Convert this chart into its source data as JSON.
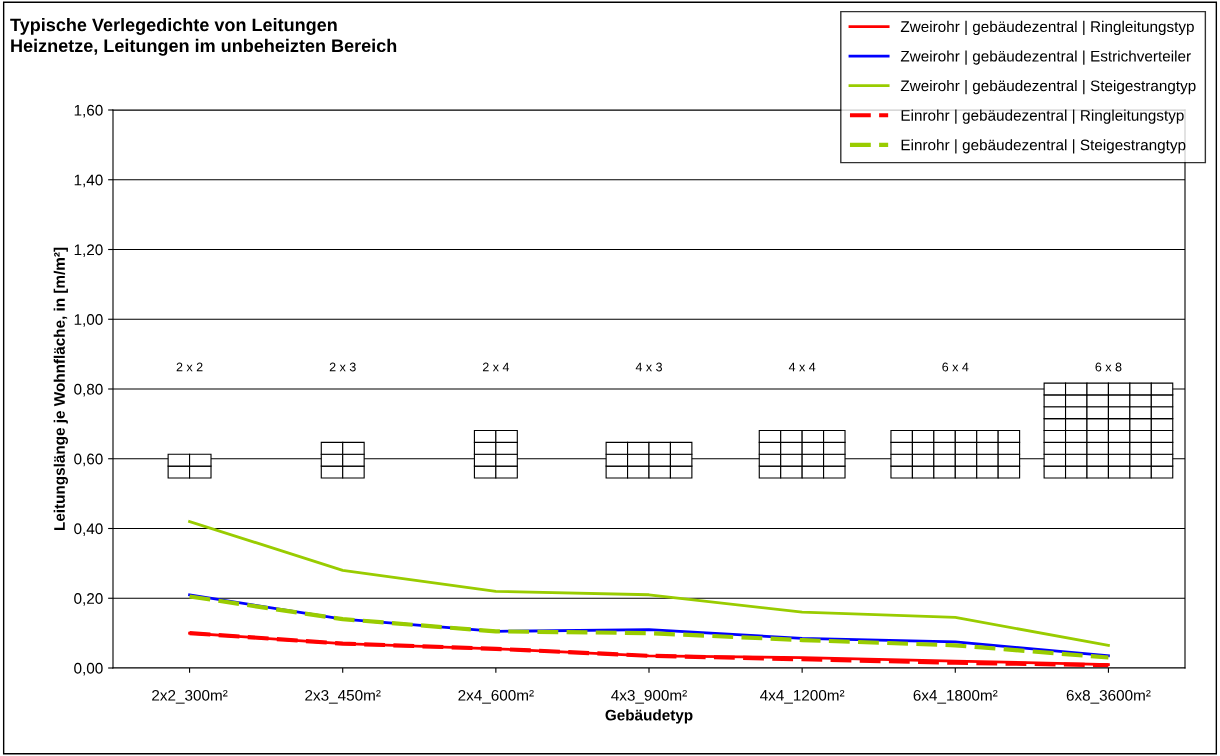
{
  "chart_data": {
    "type": "line",
    "title": "Typische Verlegedichte von Leitungen\nHeiznetze, Leitungen im unbeheizten Bereich",
    "xlabel": "Gebäudetyp",
    "ylabel": "Leitungslänge je Wohnfläche, in [m/m²]",
    "categories": [
      "2x2_300m²",
      "2x3_450m²",
      "2x4_600m²",
      "4x3_900m²",
      "4x4_1200m²",
      "6x4_1800m²",
      "6x8_3600m²"
    ],
    "series": [
      {
        "name": "Zweirohr | gebäudezentral | Ringleitungstyp",
        "color": "#ff0000",
        "line_style": "solid",
        "values": [
          0.1,
          0.07,
          0.055,
          0.035,
          0.03,
          0.02,
          0.01
        ]
      },
      {
        "name": "Zweirohr | gebäudezentral | Estrichverteiler",
        "color": "#0000ff",
        "line_style": "solid",
        "values": [
          0.21,
          0.14,
          0.105,
          0.11,
          0.085,
          0.075,
          0.035
        ]
      },
      {
        "name": "Zweirohr | gebäudezentral | Steigestrangtyp",
        "color": "#99cc00",
        "line_style": "solid",
        "values": [
          0.42,
          0.28,
          0.22,
          0.21,
          0.16,
          0.145,
          0.065
        ]
      },
      {
        "name": "Einrohr | gebäudezentral | Ringleitungstyp",
        "color": "#ff0000",
        "line_style": "dashed",
        "values": [
          0.1,
          0.07,
          0.055,
          0.035,
          0.025,
          0.015,
          0.008
        ]
      },
      {
        "name": "Einrohr | gebäudezentral | Steigestrangtyp",
        "color": "#99cc00",
        "line_style": "dashed",
        "values": [
          0.205,
          0.14,
          0.105,
          0.1,
          0.08,
          0.065,
          0.03
        ]
      }
    ],
    "ylim": [
      0,
      1.6
    ],
    "yticks": [
      {
        "value": 0,
        "label": "0,00"
      },
      {
        "value": 0.2,
        "label": "0,20"
      },
      {
        "value": 0.4,
        "label": "0,40"
      },
      {
        "value": 0.6,
        "label": "0,60"
      },
      {
        "value": 0.8,
        "label": "0,80"
      },
      {
        "value": 1.0,
        "label": "1,00"
      },
      {
        "value": 1.2,
        "label": "1,20"
      },
      {
        "value": 1.4,
        "label": "1,40"
      },
      {
        "value": 1.6,
        "label": "1,60"
      }
    ],
    "grid": "y",
    "legend": "top right",
    "marker": "none",
    "annotations": [
      "2 x 2",
      "2 x 3",
      "2 x 4",
      "4 x 3",
      "4 x 4",
      "6 x 4",
      "6 x 8"
    ]
  }
}
